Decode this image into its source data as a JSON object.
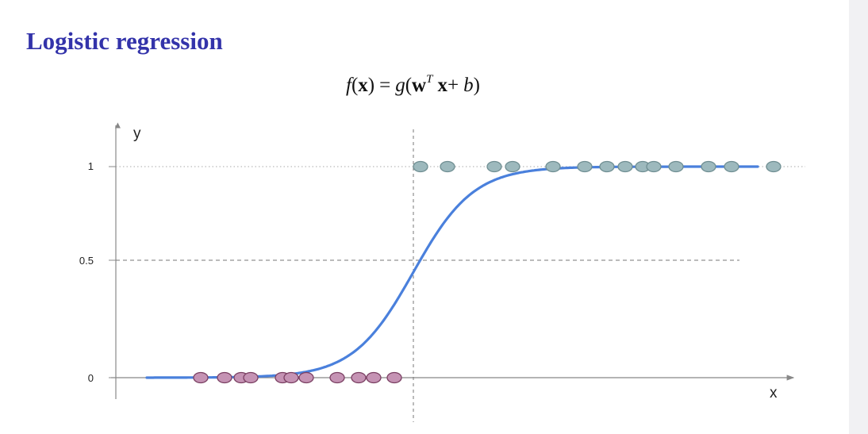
{
  "title": "Logistic regression",
  "formula": {
    "f": "f",
    "x_open": "(",
    "x": "x",
    "x_close": ")",
    "equals": "=",
    "g": "g",
    "g_open": "(",
    "w": "w",
    "transpose": "T",
    "x2": "x",
    "plus": "+",
    "b": "b",
    "g_close": ")"
  },
  "chart_data": {
    "type": "scatter",
    "xlabel": "x",
    "ylabel": "y",
    "y_ticks": [
      "0",
      "0.5",
      "1"
    ],
    "y_tick_values": [
      0,
      0.5,
      1
    ],
    "x_range": [
      0,
      1000
    ],
    "y_range": [
      0,
      1
    ],
    "x_ticks_shown": false,
    "decision_boundary_x": 521,
    "decision_boundary_y": 0.5,
    "sigmoid": {
      "x_start": 185,
      "x_end": 955,
      "center_x": 521,
      "scale": 38,
      "color": "#4a80dc"
    },
    "series": [
      {
        "label_value": 0,
        "color": "#c593b4",
        "x": [
          253,
          283,
          304,
          316,
          356,
          367,
          386,
          425,
          452,
          471,
          497
        ]
      },
      {
        "label_value": 1,
        "color": "#9db9bd",
        "x": [
          530,
          564,
          623,
          646,
          697,
          737,
          765,
          788,
          810,
          824,
          852,
          893,
          922,
          975
        ]
      }
    ],
    "reference_line_color": "#777777",
    "grid": false,
    "legend": "none"
  }
}
